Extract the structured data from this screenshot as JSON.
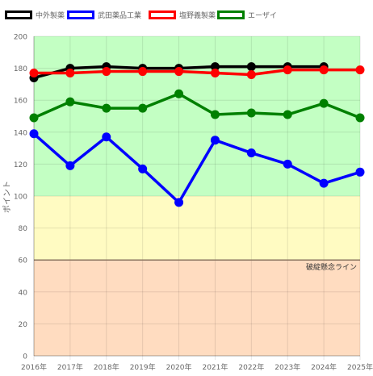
{
  "chart_data": {
    "type": "line",
    "title": "",
    "xlabel": "",
    "ylabel": "ポイント",
    "ylim": [
      0,
      200
    ],
    "yticks": [
      0,
      20,
      40,
      60,
      80,
      100,
      120,
      140,
      160,
      180,
      200
    ],
    "categories": [
      "2016年",
      "2017年",
      "2018年",
      "2019年",
      "2020年",
      "2021年",
      "2022年",
      "2023年",
      "2024年",
      "2025年"
    ],
    "grid": true,
    "legend_position": "top-left",
    "bands": [
      {
        "from": 100,
        "to": 200,
        "color": "#c3ffc3"
      },
      {
        "from": 60,
        "to": 100,
        "color": "#fffbc2"
      },
      {
        "from": 0,
        "to": 60,
        "color": "#ffdcc0"
      }
    ],
    "threshold": {
      "value": 60,
      "label": "破綻懸念ライン",
      "color": "#8a7560"
    },
    "series": [
      {
        "name": "中外製薬",
        "color": "#000000",
        "values": [
          174,
          180,
          181,
          180,
          180,
          181,
          181,
          181,
          181,
          null
        ]
      },
      {
        "name": "武田薬品工業",
        "color": "#0000ff",
        "values": [
          139,
          119,
          137,
          117,
          96,
          135,
          127,
          120,
          108,
          115
        ]
      },
      {
        "name": "塩野義製薬",
        "color": "#ff0000",
        "values": [
          177,
          177,
          178,
          178,
          178,
          177,
          176,
          179,
          179,
          179
        ]
      },
      {
        "name": "エーザイ",
        "color": "#008000",
        "values": [
          149,
          159,
          155,
          155,
          164,
          151,
          152,
          151,
          158,
          149
        ]
      }
    ]
  }
}
